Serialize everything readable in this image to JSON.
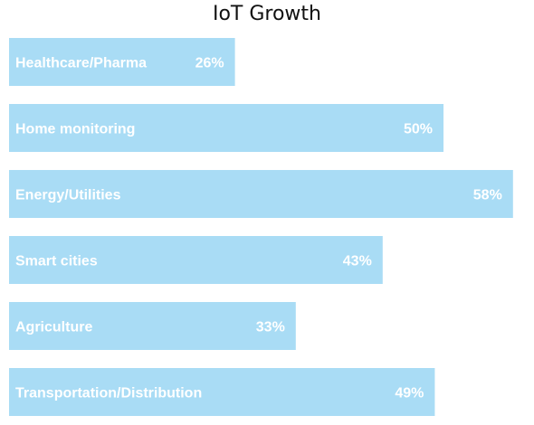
{
  "chart_data": {
    "type": "bar",
    "orientation": "horizontal",
    "title": "IoT Growth",
    "categories": [
      "Healthcare/Pharma",
      "Home monitoring",
      "Energy/Utilities",
      "Smart cities",
      "Agriculture",
      "Transportation/Distribution"
    ],
    "values": [
      26,
      50,
      58,
      43,
      33,
      49
    ],
    "value_labels": [
      "26%",
      "50%",
      "58%",
      "43%",
      "33%",
      "49%"
    ],
    "unit": "%",
    "xlim": [
      0,
      60
    ],
    "grid": false,
    "legend": "none",
    "bar_color": "#a9dcf5",
    "label_color": "#ffffff"
  }
}
